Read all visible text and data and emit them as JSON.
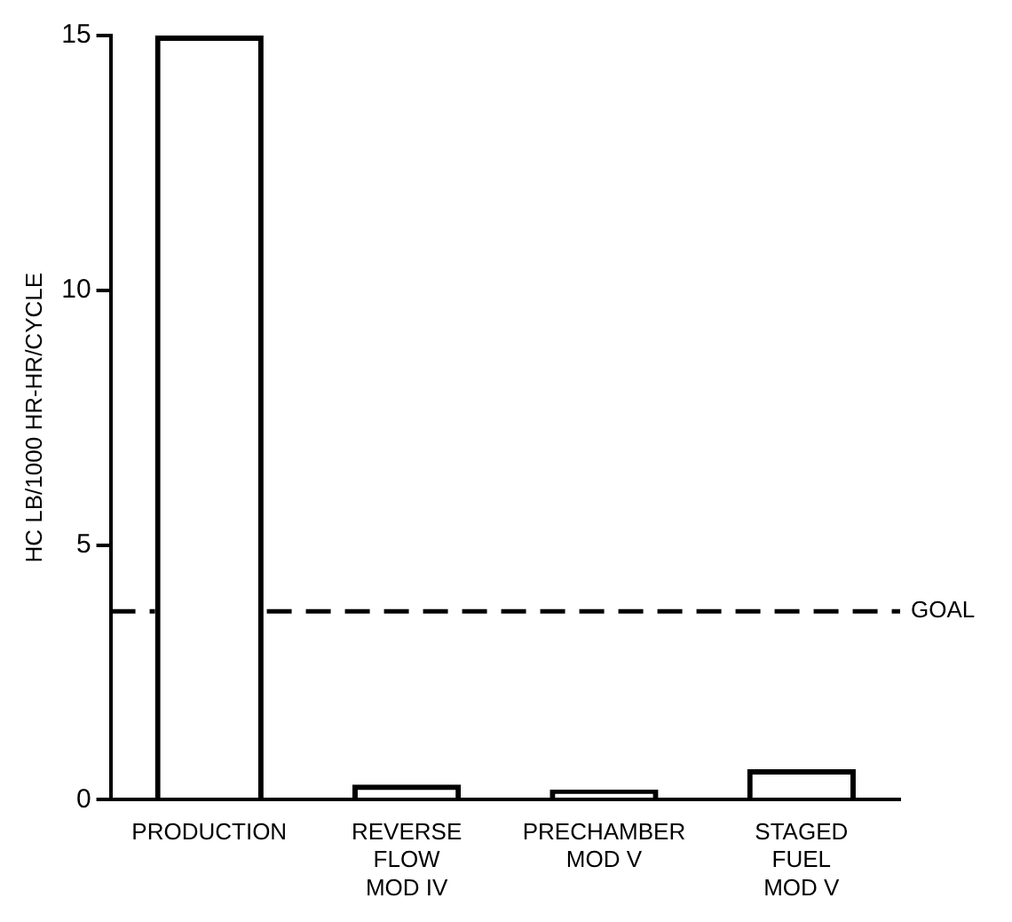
{
  "chart_data": {
    "type": "bar",
    "ylabel": "HC LB/1000 HR-HR/CYCLE",
    "categories": [
      "PRODUCTION",
      "REVERSE\nFLOW\nMOD IV",
      "PRECHAMBER\nMOD V",
      "STAGED\nFUEL\nMOD V"
    ],
    "values": [
      15,
      0.3,
      0.2,
      0.6
    ],
    "color": "#000000",
    "ylim": [
      0,
      15
    ],
    "yticks": [
      0,
      5,
      10,
      15
    ],
    "ref_lines": [
      {
        "axis": "y",
        "value": 3.7,
        "label": "GOAL",
        "color": "#000000",
        "line_style": "dashed"
      }
    ]
  }
}
